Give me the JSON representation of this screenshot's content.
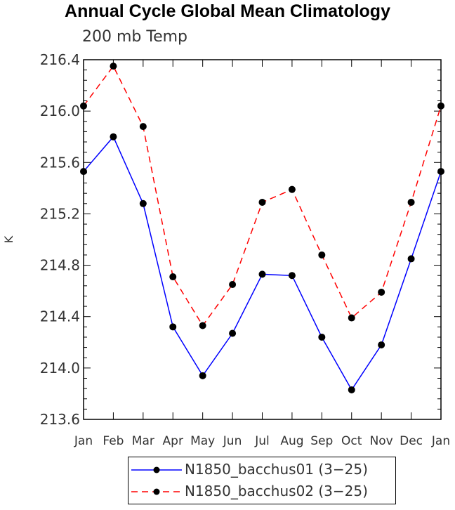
{
  "chart_data": {
    "type": "line",
    "title": "Annual Cycle Global Mean Climatology",
    "subtitle": "200 mb Temp",
    "ylabel": "K",
    "xlabel": "",
    "categories": [
      "Jan",
      "Feb",
      "Mar",
      "Apr",
      "May",
      "Jun",
      "Jul",
      "Aug",
      "Sep",
      "Oct",
      "Nov",
      "Dec",
      "Jan"
    ],
    "ylim": [
      213.6,
      216.4
    ],
    "yticks": [
      "213.6",
      "214.0",
      "214.4",
      "214.8",
      "215.2",
      "215.6",
      "216.0",
      "216.4"
    ],
    "grid": false,
    "legend_position": "bottom",
    "series": [
      {
        "name": "N1850_bacchus01 (3−25)",
        "color": "#0000ff",
        "line_style": "solid",
        "values": [
          215.53,
          215.8,
          215.28,
          214.32,
          213.94,
          214.27,
          214.73,
          214.72,
          214.24,
          213.83,
          214.18,
          214.85,
          215.53
        ]
      },
      {
        "name": "N1850_bacchus02 (3−25)",
        "color": "#ff0000",
        "line_style": "dashed",
        "values": [
          216.04,
          216.35,
          215.88,
          214.71,
          214.33,
          214.65,
          215.29,
          215.39,
          214.88,
          214.39,
          214.59,
          215.29,
          216.04
        ]
      }
    ]
  }
}
